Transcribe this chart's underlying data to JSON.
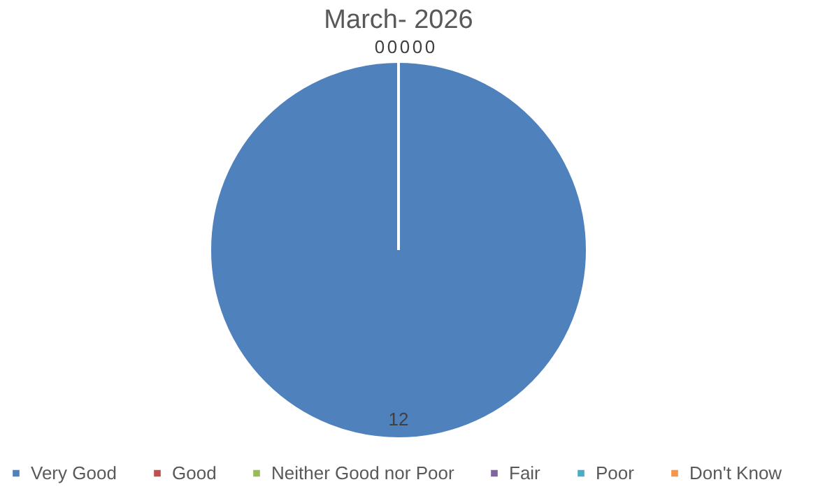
{
  "chart_data": {
    "type": "pie",
    "title": "March- 2026",
    "categories": [
      "Very Good",
      "Good",
      "Neither Good nor Poor",
      "Fair",
      "Poor",
      "Don't Know"
    ],
    "values": [
      12,
      0,
      0,
      0,
      0,
      0
    ],
    "colors": [
      "#4f81bd",
      "#c0504d",
      "#9bbb59",
      "#8064a2",
      "#4bacc6",
      "#f79646"
    ],
    "value_labels": [
      "12",
      "0",
      "0",
      "0",
      "0",
      "0"
    ],
    "legend": "bottom"
  }
}
